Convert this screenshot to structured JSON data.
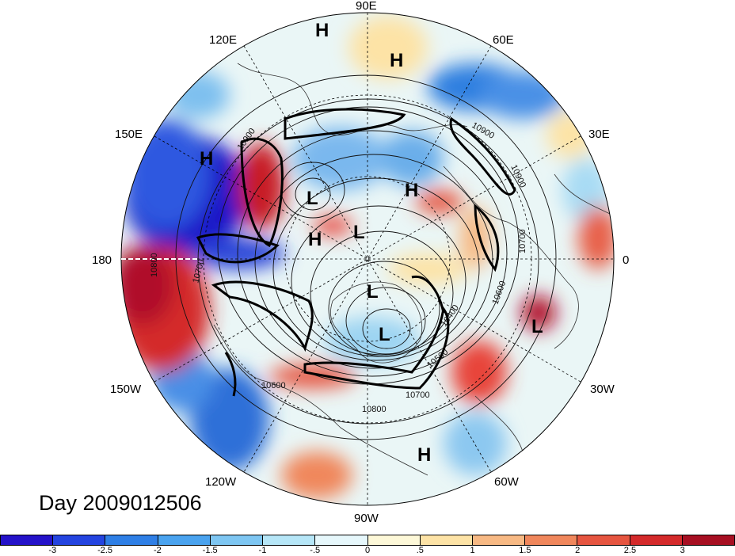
{
  "map": {
    "lon_labels": {
      "e90": "90E",
      "e60": "60E",
      "e30": "30E",
      "zero": "0",
      "w30": "30W",
      "w60": "60W",
      "w90": "90W",
      "w120": "120W",
      "w150": "150W",
      "d180": "180",
      "e150": "150E",
      "e120": "120E"
    },
    "pressure_centers": [
      {
        "id": "h1",
        "type": "H"
      },
      {
        "id": "h2",
        "type": "H"
      },
      {
        "id": "h3",
        "type": "H"
      },
      {
        "id": "h4",
        "type": "H"
      },
      {
        "id": "h5",
        "type": "H"
      },
      {
        "id": "h6",
        "type": "H"
      },
      {
        "id": "l1",
        "type": "L"
      },
      {
        "id": "l2",
        "type": "L"
      },
      {
        "id": "l3",
        "type": "L"
      },
      {
        "id": "l4",
        "type": "L"
      },
      {
        "id": "l5",
        "type": "L"
      }
    ],
    "contour_labels": {
      "c10900a": "10900",
      "c10900b": "10900",
      "c10900c": "10900",
      "c10800a": "10800",
      "c10800b": "10800",
      "c10700a": "10700",
      "c10700b": "10700",
      "c10700c": "10700",
      "c10600a": "10600",
      "c10600b": "10600",
      "c10500": "10500",
      "c10400": "10400"
    },
    "colors": {
      "positive_strong": "#b0102a",
      "positive": "#e8453a",
      "positive_light": "#f6b38a",
      "neutral_warm": "#fdf3cf",
      "neutral_cool": "#e6f7fb",
      "negative_light": "#8fcdf0",
      "negative": "#2f7fe0",
      "negative_strong": "#1a14c8"
    }
  },
  "day_label": "Day 2009012506",
  "colorbar": {
    "colors": [
      "#2412c9",
      "#2444e0",
      "#2f7fe6",
      "#4aa3ef",
      "#7ec6f2",
      "#b6e6f7",
      "#e6f7fb",
      "#fdf8d8",
      "#fde3a6",
      "#f7b984",
      "#f0875c",
      "#e65540",
      "#d42a2b",
      "#a70f22"
    ],
    "tick_labels": [
      "-3",
      "-2.5",
      "-2",
      "-1.5",
      "-1",
      "-.5",
      "0",
      ".5",
      "1",
      "1.5",
      "2",
      "2.5",
      "3"
    ]
  }
}
